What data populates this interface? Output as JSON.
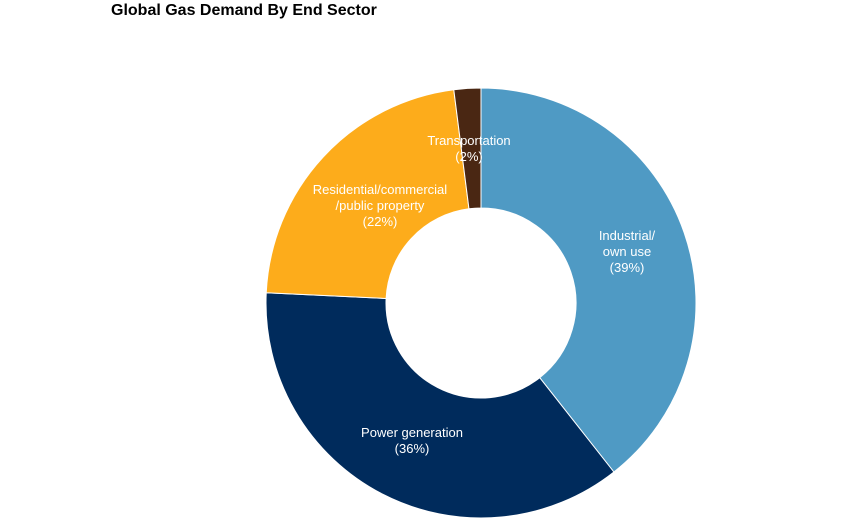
{
  "chart_data": {
    "type": "pie",
    "variant": "donut",
    "title": "Global Gas Demand By End Sector",
    "slices": [
      {
        "label_lines": [
          "Industrial/",
          "own use",
          "(39%)"
        ],
        "value": 39,
        "color": "#4f9ac4"
      },
      {
        "label_lines": [
          "Power generation",
          "(36%)"
        ],
        "value": 36,
        "color": "#002b5c"
      },
      {
        "label_lines": [
          "Residential/commercial",
          "/public property",
          "(22%)"
        ],
        "value": 22,
        "color": "#fdac1b"
      },
      {
        "label_lines": [
          "Transportation",
          "(2%)"
        ],
        "value": 2,
        "color": "#4a2713"
      }
    ],
    "legend": "none"
  }
}
